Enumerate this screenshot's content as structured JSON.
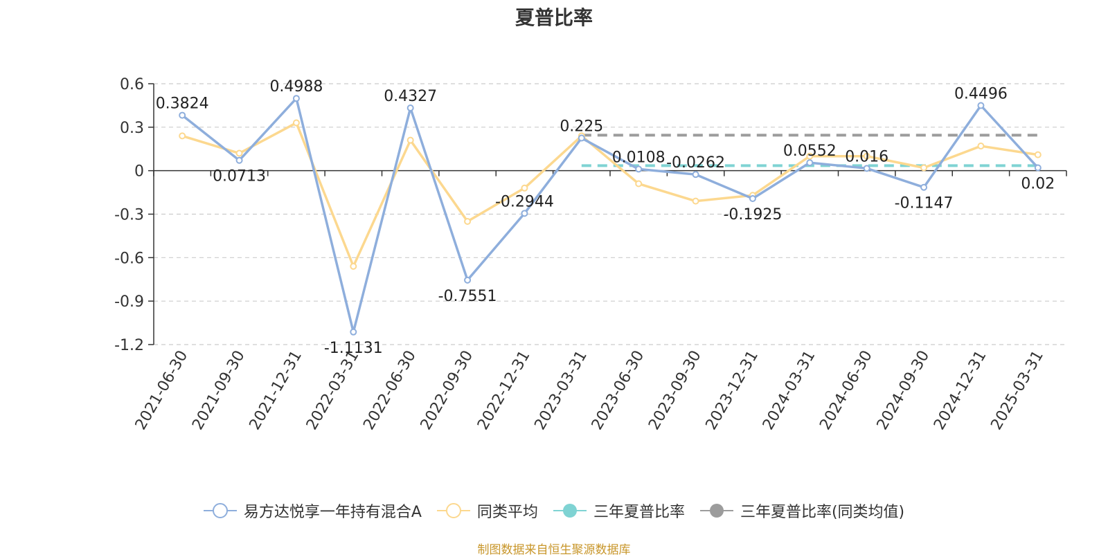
{
  "chart_data": {
    "type": "line",
    "title": "夏普比率",
    "categories": [
      "2021-06-30",
      "2021-09-30",
      "2021-12-31",
      "2022-03-31",
      "2022-06-30",
      "2022-09-30",
      "2022-12-31",
      "2023-03-31",
      "2023-06-30",
      "2023-09-30",
      "2023-12-31",
      "2024-03-31",
      "2024-06-30",
      "2024-09-30",
      "2024-12-31",
      "2025-03-31"
    ],
    "ylim": [
      -1.2,
      0.6
    ],
    "yticks": [
      "0.6",
      "0.3",
      "0",
      "-0.3",
      "-0.6",
      "-0.9",
      "-1.2"
    ],
    "grid": true,
    "legend_position": "bottom",
    "series": [
      {
        "name": "易方达悦享一年持有混合A",
        "color": "#8eaedc",
        "values": [
          0.3824,
          0.0713,
          0.4988,
          -1.1131,
          0.4327,
          -0.7551,
          -0.2944,
          0.225,
          0.0108,
          -0.0262,
          -0.1925,
          0.0552,
          0.016,
          -0.1147,
          0.4496,
          0.02
        ],
        "labels": [
          "0.3824",
          "0.0713",
          "0.4988",
          "-1.1131",
          "0.4327",
          "-0.7551",
          "-0.2944",
          "0.225",
          "0.0108",
          "-0.0262",
          "-0.1925",
          "0.0552",
          "0.016",
          "-0.1147",
          "0.4496",
          "0.02"
        ]
      },
      {
        "name": "同类平均",
        "color": "#fcd88f",
        "values": [
          0.24,
          0.12,
          0.33,
          -0.66,
          0.21,
          -0.35,
          -0.12,
          0.24,
          -0.09,
          -0.21,
          -0.17,
          0.1,
          0.1,
          0.02,
          0.17,
          0.11
        ]
      },
      {
        "name": "三年夏普比率",
        "color": "#7fd3d3",
        "type": "dashed-hline",
        "value": 0.035,
        "from_category": 7
      },
      {
        "name": "三年夏普比率(同类均值)",
        "color": "#9c9c9c",
        "type": "dashed-hline",
        "value": 0.245,
        "from_category": 7
      }
    ]
  },
  "footer": {
    "source": "制图数据来自恒生聚源数据库"
  }
}
